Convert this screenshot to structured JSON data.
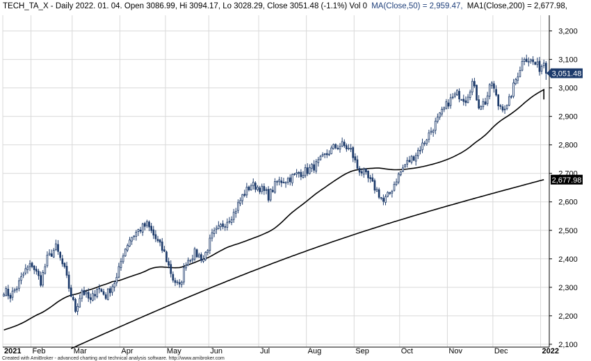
{
  "header": {
    "prefix": "TECH_TA_X - Daily 2022. 01. 04. Open 3086.99, Hi 3094.17, Lo 3028.29, Close 3051.48 (-1.1%) Vol 0",
    "ma50": "MA(Close,50) = 2,959.47,",
    "ma200": "MA1(Close,200) = 2,677.98,"
  },
  "footer": {
    "credit": "Created with AmiBroker - advanced charting and technical analysis software. http://www.amibroker.com"
  },
  "colors": {
    "candle_up_body": "#ffffff",
    "candle_down_body": "#1c3a6b",
    "candle_outline": "#1c3a6b",
    "ma_line": "#000000",
    "grid": "#d9d9d9",
    "last_price_label": "#1c3a6b",
    "ma200_label": "#000000",
    "title_blue": "#1f3f7a"
  },
  "chart_data": {
    "type": "candlestick",
    "y_ticks": [
      "2,100",
      "2,200",
      "2,300",
      "2,400",
      "2,500",
      "2,600",
      "2,700",
      "2,800",
      "2,900",
      "3,000",
      "3,100",
      "3,200"
    ],
    "y_tick_values": [
      2100,
      2200,
      2300,
      2400,
      2500,
      2600,
      2700,
      2800,
      2900,
      3000,
      3100,
      3200
    ],
    "ylim": [
      2090,
      3255
    ],
    "x_months": [
      "2021",
      "Feb",
      "Mar",
      "Apr",
      "May",
      "Jun",
      "Jul",
      "Aug",
      "Sep",
      "Oct",
      "Nov",
      "Dec",
      "2022"
    ],
    "x_month_start_bar": [
      0,
      13,
      32,
      54,
      75,
      95,
      118,
      140,
      162,
      183,
      205,
      226,
      248
    ],
    "n_bars": 252,
    "grid": true,
    "last_close_label": "3,051.48",
    "last_close": 3051.48,
    "ma200_label": "2,677.98",
    "ma200_last": 2677.98,
    "keypoints": [
      [
        0,
        2290
      ],
      [
        3,
        2270
      ],
      [
        6,
        2300
      ],
      [
        10,
        2360
      ],
      [
        13,
        2380
      ],
      [
        17,
        2320
      ],
      [
        20,
        2400
      ],
      [
        24,
        2440
      ],
      [
        28,
        2360
      ],
      [
        30,
        2300
      ],
      [
        33,
        2220
      ],
      [
        36,
        2290
      ],
      [
        40,
        2250
      ],
      [
        43,
        2300
      ],
      [
        47,
        2270
      ],
      [
        52,
        2330
      ],
      [
        55,
        2420
      ],
      [
        58,
        2470
      ],
      [
        62,
        2500
      ],
      [
        66,
        2520
      ],
      [
        70,
        2470
      ],
      [
        74,
        2420
      ],
      [
        78,
        2330
      ],
      [
        81,
        2300
      ],
      [
        84,
        2390
      ],
      [
        88,
        2420
      ],
      [
        92,
        2400
      ],
      [
        96,
        2480
      ],
      [
        101,
        2520
      ],
      [
        106,
        2560
      ],
      [
        110,
        2620
      ],
      [
        114,
        2660
      ],
      [
        118,
        2650
      ],
      [
        122,
        2620
      ],
      [
        126,
        2670
      ],
      [
        131,
        2680
      ],
      [
        136,
        2700
      ],
      [
        140,
        2710
      ],
      [
        144,
        2730
      ],
      [
        148,
        2760
      ],
      [
        152,
        2790
      ],
      [
        156,
        2800
      ],
      [
        160,
        2780
      ],
      [
        163,
        2720
      ],
      [
        166,
        2700
      ],
      [
        169,
        2670
      ],
      [
        172,
        2640
      ],
      [
        175,
        2600
      ],
      [
        178,
        2630
      ],
      [
        181,
        2680
      ],
      [
        185,
        2730
      ],
      [
        189,
        2760
      ],
      [
        193,
        2800
      ],
      [
        197,
        2850
      ],
      [
        201,
        2900
      ],
      [
        205,
        2950
      ],
      [
        209,
        2980
      ],
      [
        213,
        2960
      ],
      [
        216,
        3020
      ],
      [
        219,
        2940
      ],
      [
        222,
        2950
      ],
      [
        225,
        3020
      ],
      [
        228,
        2940
      ],
      [
        232,
        2930
      ],
      [
        236,
        3030
      ],
      [
        240,
        3110
      ],
      [
        244,
        3090
      ],
      [
        247,
        3070
      ],
      [
        249,
        3086.99
      ]
    ],
    "last_bar": {
      "open": 3086.99,
      "high": 3094.17,
      "low": 3028.29,
      "close": 3051.48
    },
    "ma50": {
      "name": "MA(Close,50)",
      "start": [
        0,
        2150
      ],
      "end": [
        249,
        2959.47
      ]
    },
    "ma200": {
      "name": "MA1(Close,200)",
      "start": [
        31,
        2085
      ],
      "end": [
        249,
        2677.98
      ]
    }
  }
}
